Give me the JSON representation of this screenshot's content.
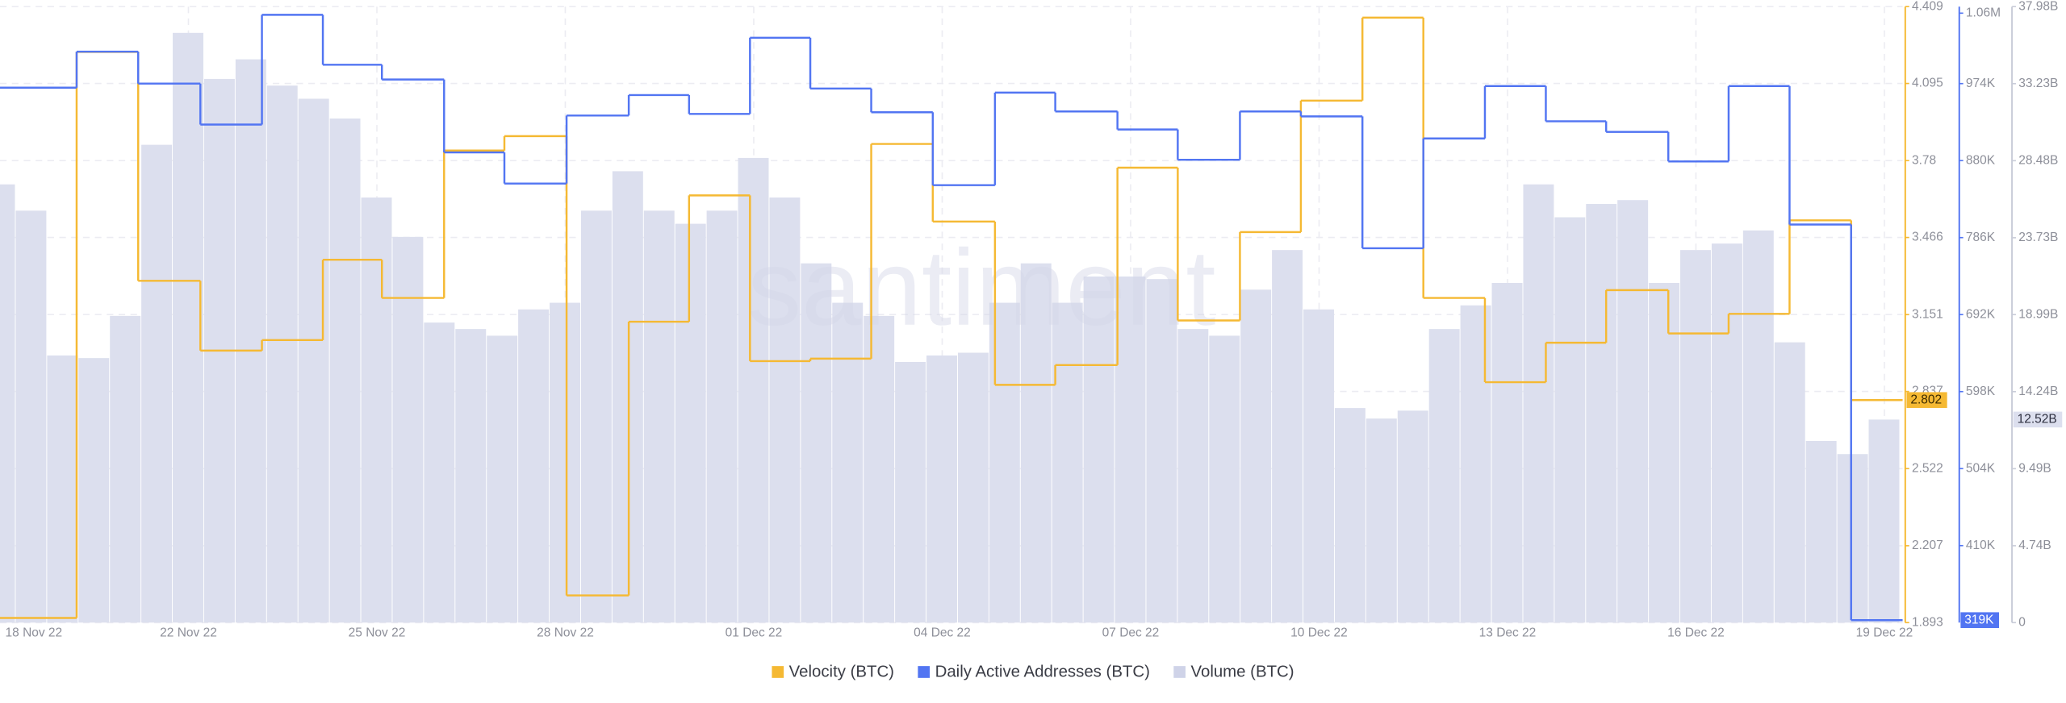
{
  "chart_data": {
    "type": "combo",
    "watermark": "santiment",
    "xlim": [
      19,
      49.29
    ],
    "xticks": [
      {
        "value": 18,
        "label": "18 Nov 22"
      },
      {
        "value": 22,
        "label": "22 Nov 22"
      },
      {
        "value": 25,
        "label": "25 Nov 22"
      },
      {
        "value": 28,
        "label": "28 Nov 22"
      },
      {
        "value": 31,
        "label": "01 Dec 22"
      },
      {
        "value": 34,
        "label": "04 Dec 22"
      },
      {
        "value": 37,
        "label": "07 Dec 22"
      },
      {
        "value": 40,
        "label": "10 Dec 22"
      },
      {
        "value": 43,
        "label": "13 Dec 22"
      },
      {
        "value": 46,
        "label": "16 Dec 22"
      },
      {
        "value": 49,
        "label": "19 Dec 22"
      }
    ],
    "ylim": [
      1.893,
      4.409
    ],
    "yticks": [
      1.893,
      2.207,
      2.522,
      2.837,
      3.151,
      3.466,
      3.78,
      4.095,
      4.409
    ],
    "y2lim": [
      316000,
      1068000
    ],
    "y2ticks": [
      {
        "value": 410000,
        "label": "410K"
      },
      {
        "value": 504000,
        "label": "504K"
      },
      {
        "value": 598000,
        "label": "598K"
      },
      {
        "value": 692000,
        "label": "692K"
      },
      {
        "value": 786000,
        "label": "786K"
      },
      {
        "value": 880000,
        "label": "880K"
      },
      {
        "value": 974000,
        "label": "974K"
      },
      {
        "value": 1060000,
        "label": "1.06M"
      }
    ],
    "y3lim": [
      0,
      37980000000
    ],
    "y3ticks": [
      0,
      {
        "value": 4740000000,
        "label": "4.74B"
      },
      {
        "value": 9490000000,
        "label": "9.49B"
      },
      {
        "value": 14240000000,
        "label": "14.24B"
      },
      {
        "value": 18990000000,
        "label": "18.99B"
      },
      {
        "value": 23730000000,
        "label": "23.73B"
      },
      {
        "value": 28480000000,
        "label": "28.48B"
      },
      {
        "value": 33230000000,
        "label": "33.23B"
      },
      {
        "value": 37980000000,
        "label": "37.98B"
      }
    ],
    "grid": true,
    "legend": "bottom",
    "series": [
      {
        "name": "Volume (BTC)",
        "type": "bar",
        "axis": "y3",
        "color": "#dcdfee",
        "last_label": "12.52B",
        "x": [
          19,
          19.5,
          20,
          20.5,
          21,
          21.5,
          22,
          22.5,
          23,
          23.5,
          24,
          24.5,
          25,
          25.5,
          26,
          26.5,
          27,
          27.5,
          28,
          28.5,
          29,
          29.5,
          30,
          30.5,
          31,
          31.5,
          32,
          32.5,
          33,
          33.5,
          34,
          34.5,
          35,
          35.5,
          36,
          36.5,
          37,
          37.5,
          38,
          38.5,
          39,
          39.5,
          40,
          40.5,
          41,
          41.5,
          42,
          42.5,
          43,
          43.5,
          44,
          44.5,
          45,
          45.5,
          46,
          46.5,
          47,
          47.5,
          48,
          48.5,
          49
        ],
        "values": [
          27020000000.0,
          25400000000.0,
          16470000000.0,
          16310000000.0,
          18910000000.0,
          29460000000.0,
          36360000000.0,
          33520000000.0,
          34730000000.0,
          33110000000.0,
          32300000000.0,
          31080000000.0,
          26210000000.0,
          23780000000.0,
          18500000000.0,
          18100000000.0,
          17690000000.0,
          19310000000.0,
          19720000000.0,
          25400000000.0,
          27830000000.0,
          25400000000.0,
          24590000000.0,
          25400000000.0,
          28650000000.0,
          26210000000.0,
          22150000000.0,
          19720000000.0,
          18910000000.0,
          16070000000.0,
          16470000000.0,
          16640000000.0,
          19720000000.0,
          22150000000.0,
          19720000000.0,
          21340000000.0,
          21340000000.0,
          21180000000.0,
          18100000000.0,
          17690000000.0,
          20530000000.0,
          22970000000.0,
          19310000000.0,
          13230000000.0,
          12580000000.0,
          13070000000.0,
          18100000000.0,
          19560000000.0,
          20940000000.0,
          27020000000.0,
          24990000000.0,
          25810000000.0,
          26050000000.0,
          20940000000.0,
          22970000000.0,
          23370000000.0,
          24180000000.0,
          17280000000.0,
          11200000000.0,
          10390000000.0,
          12520000000.0
        ]
      },
      {
        "name": "Velocity (BTC)",
        "type": "step",
        "axis": "y",
        "color": "#f5b933",
        "last_label": "2.802",
        "x": [
          19,
          20.22,
          21.2,
          22.19,
          23.17,
          24.14,
          25.08,
          26.07,
          27.03,
          28.02,
          29.01,
          29.97,
          30.94,
          31.9,
          32.87,
          33.85,
          34.84,
          35.8,
          36.79,
          37.75,
          38.74,
          39.71,
          40.69,
          41.66,
          42.64,
          43.61,
          44.57,
          45.56,
          46.52,
          47.49,
          48.47
        ],
        "values": [
          1.912,
          4.224,
          3.289,
          3.004,
          3.047,
          3.375,
          3.219,
          3.821,
          3.88,
          2.004,
          3.122,
          3.638,
          2.961,
          2.971,
          3.848,
          3.531,
          2.864,
          2.945,
          3.751,
          3.127,
          3.488,
          4.025,
          4.364,
          3.219,
          2.875,
          3.036,
          3.251,
          3.074,
          3.154,
          3.536,
          2.802
        ]
      },
      {
        "name": "Daily Active Addresses (BTC)",
        "type": "step",
        "axis": "y2",
        "color": "#5275f2",
        "last_label": "319K",
        "x": [
          19,
          20.22,
          21.2,
          22.19,
          23.17,
          24.14,
          25.08,
          26.07,
          27.03,
          28.02,
          29.01,
          29.97,
          30.94,
          31.9,
          32.87,
          33.85,
          34.84,
          35.8,
          36.79,
          37.75,
          38.74,
          39.71,
          40.69,
          41.66,
          42.64,
          43.61,
          44.57,
          45.56,
          46.52,
          47.49,
          48.47
        ],
        "values": [
          969000,
          1013000,
          974000,
          924000,
          1058000,
          997000,
          979000,
          890000,
          852000,
          935000,
          960000,
          937000,
          1030000,
          968000,
          939000,
          850000,
          963000,
          940000,
          918000,
          881000,
          940000,
          934000,
          773000,
          907000,
          971000,
          928000,
          915000,
          879000,
          971000,
          802000,
          319000
        ]
      }
    ]
  }
}
